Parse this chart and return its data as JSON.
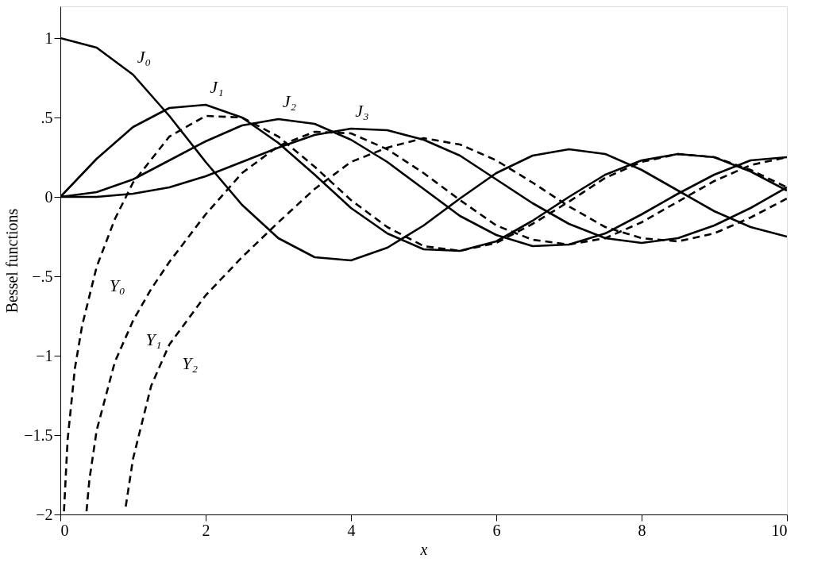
{
  "chart_data": {
    "type": "line",
    "xlabel": "x",
    "ylabel": "Bessel functions",
    "xlim": [
      0,
      10
    ],
    "xticks": [
      0,
      2,
      4,
      6,
      8,
      10
    ],
    "ylim": [
      -2,
      1.2
    ],
    "yticks": [
      {
        "value": -2,
        "label": "−2"
      },
      {
        "value": -1.5,
        "label": "−1.5"
      },
      {
        "value": -1,
        "label": "−1"
      },
      {
        "value": -0.5,
        "label": "−.5"
      },
      0,
      {
        "value": 0.5,
        "label": ".5"
      },
      1
    ],
    "grid": false,
    "marker": "none",
    "series": [
      {
        "color": "#000000",
        "line_style": "solid",
        "x": [
          0,
          0.5,
          1,
          1.5,
          2,
          2.5,
          3,
          3.5,
          4,
          4.5,
          5,
          5.5,
          6,
          6.5,
          7,
          7.5,
          8,
          8.5,
          9,
          9.5,
          10
        ],
        "values": [
          1,
          0.94,
          0.77,
          0.51,
          0.22,
          -0.05,
          -0.26,
          -0.38,
          -0.4,
          -0.32,
          -0.18,
          -0.01,
          0.15,
          0.26,
          0.3,
          0.27,
          0.17,
          0.04,
          -0.09,
          -0.19,
          -0.25
        ]
      },
      {
        "color": "#000000",
        "line_style": "solid",
        "x": [
          0,
          0.5,
          1,
          1.5,
          2,
          2.5,
          3,
          3.5,
          4,
          4.5,
          5,
          5.5,
          6,
          6.5,
          7,
          7.5,
          8,
          8.5,
          9,
          9.5,
          10
        ],
        "values": [
          0,
          0.24,
          0.44,
          0.56,
          0.58,
          0.5,
          0.34,
          0.14,
          -0.07,
          -0.23,
          -0.33,
          -0.34,
          -0.28,
          -0.15,
          0,
          0.14,
          0.23,
          0.27,
          0.25,
          0.16,
          0.04
        ]
      },
      {
        "color": "#000000",
        "line_style": "solid",
        "x": [
          0,
          0.5,
          1,
          1.5,
          2,
          2.5,
          3,
          3.5,
          4,
          4.5,
          5,
          5.5,
          6,
          6.5,
          7,
          7.5,
          8,
          8.5,
          9,
          9.5,
          10
        ],
        "values": [
          0,
          0.03,
          0.11,
          0.23,
          0.35,
          0.45,
          0.49,
          0.46,
          0.36,
          0.22,
          0.05,
          -0.12,
          -0.24,
          -0.31,
          -0.3,
          -0.23,
          -0.11,
          0.02,
          0.14,
          0.23,
          0.25
        ]
      },
      {
        "color": "#000000",
        "line_style": "solid",
        "x": [
          0,
          0.5,
          1,
          1.5,
          2,
          2.5,
          3,
          3.5,
          4,
          4.5,
          5,
          5.5,
          6,
          6.5,
          7,
          7.5,
          8,
          8.5,
          9,
          9.5,
          10
        ],
        "values": [
          0,
          0,
          0.02,
          0.06,
          0.13,
          0.22,
          0.31,
          0.39,
          0.43,
          0.42,
          0.36,
          0.26,
          0.11,
          -0.04,
          -0.17,
          -0.26,
          -0.29,
          -0.26,
          -0.18,
          -0.07,
          0.06
        ]
      },
      {
        "color": "#000000",
        "line_style": "dashed",
        "x": [
          0.05,
          0.1,
          0.2,
          0.3,
          0.5,
          0.75,
          1,
          1.5,
          2,
          2.5,
          3,
          3.5,
          4,
          4.5,
          5,
          5.5,
          6,
          6.5,
          7,
          7.5,
          8,
          8.5,
          9,
          9.5,
          10
        ],
        "values": [
          -1.98,
          -1.53,
          -1.08,
          -0.81,
          -0.44,
          -0.14,
          0.09,
          0.38,
          0.51,
          0.5,
          0.38,
          0.19,
          -0.02,
          -0.19,
          -0.31,
          -0.34,
          -0.29,
          -0.17,
          -0.03,
          0.12,
          0.22,
          0.27,
          0.25,
          0.17,
          0.06
        ]
      },
      {
        "color": "#000000",
        "line_style": "dashed",
        "x": [
          0.36,
          0.4,
          0.5,
          0.75,
          1,
          1.25,
          1.5,
          2,
          2.5,
          3,
          3.5,
          4,
          4.5,
          5,
          5.5,
          6,
          6.5,
          7,
          7.5,
          8,
          8.5,
          9,
          9.5,
          10
        ],
        "values": [
          -1.98,
          -1.78,
          -1.47,
          -1.04,
          -0.78,
          -0.58,
          -0.41,
          -0.11,
          0.15,
          0.32,
          0.41,
          0.4,
          0.3,
          0.15,
          -0.02,
          -0.18,
          -0.27,
          -0.3,
          -0.26,
          -0.16,
          -0.03,
          0.1,
          0.2,
          0.25
        ]
      },
      {
        "color": "#000000",
        "line_style": "dashed",
        "x": [
          0.9,
          1,
          1.25,
          1.5,
          2,
          2.5,
          3,
          3.5,
          4,
          4.5,
          5,
          5.5,
          6,
          6.5,
          7,
          7.5,
          8,
          8.5,
          9,
          9.5,
          10
        ],
        "values": [
          -1.95,
          -1.65,
          -1.19,
          -0.93,
          -0.62,
          -0.38,
          -0.16,
          0.05,
          0.22,
          0.31,
          0.37,
          0.33,
          0.23,
          0.09,
          -0.06,
          -0.19,
          -0.26,
          -0.28,
          -0.23,
          -0.13,
          -0.01
        ]
      }
    ],
    "annotations": [
      {
        "text": "J₀",
        "x": 1,
        "y": 0.77
      },
      {
        "text": "J₁",
        "x": 2,
        "y": 0.58
      },
      {
        "text": "J₂",
        "x": 3,
        "y": 0.49
      },
      {
        "text": "J₃",
        "x": 4,
        "y": 0.43
      },
      {
        "text": "Y₀",
        "x": 0.5,
        "y": -0.44
      },
      {
        "text": "Y₁",
        "x": 1,
        "y": -0.78
      },
      {
        "text": "Y₂",
        "x": 1.5,
        "y": -0.93
      }
    ]
  }
}
